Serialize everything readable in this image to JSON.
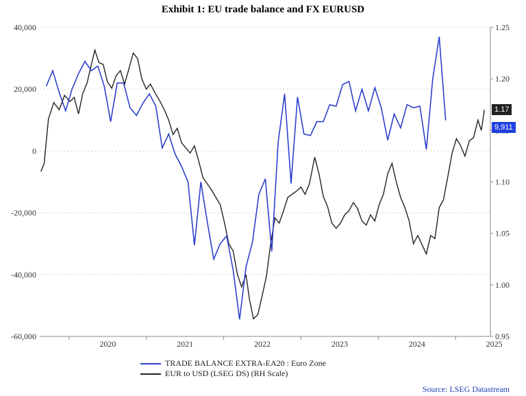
{
  "chart_data": {
    "type": "line",
    "title": "Exhibit 1: EU trade balance and FX EURUSD",
    "source": "Source: LSEG Datastream",
    "x_ticks": [
      "2020",
      "2021",
      "2022",
      "2023",
      "2024",
      "2025"
    ],
    "y_left": {
      "min": -60000,
      "max": 40000,
      "ticks": [
        "40,000",
        "20,000",
        "0",
        "-20,000",
        "-40,000",
        "-60,000"
      ]
    },
    "y_right": {
      "min": 0.95,
      "max": 1.25,
      "ticks": [
        "1.25",
        "1.20",
        "1.15",
        "1.10",
        "1.05",
        "1.00",
        "0.95"
      ]
    },
    "grid": true,
    "legend_position": "bottom",
    "series": [
      {
        "name": "TRADE BALANCE EXTRA-EA20 : Euro Zone",
        "axis": "left",
        "color": "#2b3fcc",
        "last_label": "9,911",
        "points": [
          [
            "2019-09",
            21000
          ],
          [
            "2019-10",
            26000
          ],
          [
            "2019-11",
            19000
          ],
          [
            "2019-12",
            13000
          ],
          [
            "2020-01",
            20000
          ],
          [
            "2020-02",
            25000
          ],
          [
            "2020-03",
            29000
          ],
          [
            "2020-04",
            26000
          ],
          [
            "2020-05",
            27500
          ],
          [
            "2020-06",
            21000
          ],
          [
            "2020-07",
            9500
          ],
          [
            "2020-08",
            22000
          ],
          [
            "2020-09",
            22000
          ],
          [
            "2020-10",
            14000
          ],
          [
            "2020-11",
            11500
          ],
          [
            "2020-12",
            15500
          ],
          [
            "2021-01",
            18500
          ],
          [
            "2021-02",
            14500
          ],
          [
            "2021-03",
            1000
          ],
          [
            "2021-04",
            5500
          ],
          [
            "2021-05",
            -1000
          ],
          [
            "2021-06",
            -5000
          ],
          [
            "2021-07",
            -10000
          ],
          [
            "2021-08",
            -30500
          ],
          [
            "2021-09",
            -10000
          ],
          [
            "2021-10",
            -23000
          ],
          [
            "2021-11",
            -35000
          ],
          [
            "2021-12",
            -30000
          ],
          [
            "2022-01",
            -27500
          ],
          [
            "2022-02",
            -38500
          ],
          [
            "2022-03",
            -54500
          ],
          [
            "2022-04",
            -37500
          ],
          [
            "2022-05",
            -29500
          ],
          [
            "2022-06",
            -14000
          ],
          [
            "2022-07",
            -9000
          ],
          [
            "2022-08",
            -32500
          ],
          [
            "2022-09",
            3000
          ],
          [
            "2022-10",
            18500
          ],
          [
            "2022-11",
            -10500
          ],
          [
            "2022-12",
            17500
          ],
          [
            "2023-01",
            5500
          ],
          [
            "2023-02",
            5000
          ],
          [
            "2023-03",
            9500
          ],
          [
            "2023-04",
            9500
          ],
          [
            "2023-05",
            15000
          ],
          [
            "2023-06",
            14500
          ],
          [
            "2023-07",
            21500
          ],
          [
            "2023-08",
            22500
          ],
          [
            "2023-09",
            13000
          ],
          [
            "2023-10",
            20000
          ],
          [
            "2023-11",
            13000
          ],
          [
            "2023-12",
            20500
          ],
          [
            "2024-01",
            14000
          ],
          [
            "2024-02",
            3500
          ],
          [
            "2024-03",
            12000
          ],
          [
            "2024-04",
            7500
          ],
          [
            "2024-05",
            15000
          ],
          [
            "2024-06",
            14000
          ],
          [
            "2024-07",
            14500
          ],
          [
            "2024-08",
            500
          ],
          [
            "2024-09",
            23500
          ],
          [
            "2024-10",
            37000
          ],
          [
            "2024-11",
            9911
          ]
        ]
      },
      {
        "name": "EUR to USD (LSEG DS) (RH Scale)",
        "axis": "right",
        "color": "#222222",
        "last_label": "1.17",
        "points": [
          [
            "2019-08-20",
            1.11
          ],
          [
            "2019-09-05",
            1.118
          ],
          [
            "2019-09-25",
            1.161
          ],
          [
            "2019-10-20",
            1.177
          ],
          [
            "2019-11-15",
            1.17
          ],
          [
            "2019-12-10",
            1.184
          ],
          [
            "2020-01-05",
            1.178
          ],
          [
            "2020-01-25",
            1.182
          ],
          [
            "2020-02-15",
            1.166
          ],
          [
            "2020-03-05",
            1.186
          ],
          [
            "2020-03-25",
            1.196
          ],
          [
            "2020-04-15",
            1.214
          ],
          [
            "2020-05-01",
            1.228
          ],
          [
            "2020-05-20",
            1.216
          ],
          [
            "2020-06-10",
            1.214
          ],
          [
            "2020-06-30",
            1.197
          ],
          [
            "2020-07-20",
            1.191
          ],
          [
            "2020-08-10",
            1.203
          ],
          [
            "2020-08-30",
            1.208
          ],
          [
            "2020-09-20",
            1.195
          ],
          [
            "2020-10-10",
            1.21
          ],
          [
            "2020-10-30",
            1.225
          ],
          [
            "2020-11-20",
            1.22
          ],
          [
            "2020-12-10",
            1.2
          ],
          [
            "2020-12-31",
            1.19
          ],
          [
            "2021-01-20",
            1.195
          ],
          [
            "2021-02-10",
            1.187
          ],
          [
            "2021-03-05",
            1.178
          ],
          [
            "2021-03-25",
            1.17
          ],
          [
            "2021-04-15",
            1.16
          ],
          [
            "2021-05-05",
            1.146
          ],
          [
            "2021-05-25",
            1.152
          ],
          [
            "2021-06-15",
            1.138
          ],
          [
            "2021-07-05",
            1.133
          ],
          [
            "2021-07-25",
            1.128
          ],
          [
            "2021-08-15",
            1.135
          ],
          [
            "2021-09-05",
            1.12
          ],
          [
            "2021-09-25",
            1.104
          ],
          [
            "2021-10-15",
            1.098
          ],
          [
            "2021-11-05",
            1.092
          ],
          [
            "2021-11-25",
            1.085
          ],
          [
            "2021-12-15",
            1.078
          ],
          [
            "2022-01-05",
            1.06
          ],
          [
            "2022-01-25",
            1.04
          ],
          [
            "2022-02-15",
            1.033
          ],
          [
            "2022-03-05",
            1.01
          ],
          [
            "2022-03-25",
            0.998
          ],
          [
            "2022-04-15",
            1.01
          ],
          [
            "2022-05-01",
            0.986
          ],
          [
            "2022-05-20",
            0.967
          ],
          [
            "2022-06-10",
            0.971
          ],
          [
            "2022-06-30",
            0.989
          ],
          [
            "2022-07-20",
            1.008
          ],
          [
            "2022-08-10",
            1.04
          ],
          [
            "2022-08-30",
            1.065
          ],
          [
            "2022-09-20",
            1.06
          ],
          [
            "2022-10-10",
            1.072
          ],
          [
            "2022-10-30",
            1.085
          ],
          [
            "2022-11-20",
            1.088
          ],
          [
            "2022-12-10",
            1.091
          ],
          [
            "2022-12-31",
            1.095
          ],
          [
            "2023-01-20",
            1.088
          ],
          [
            "2023-02-10",
            1.098
          ],
          [
            "2023-03-05",
            1.124
          ],
          [
            "2023-03-25",
            1.108
          ],
          [
            "2023-04-15",
            1.086
          ],
          [
            "2023-05-05",
            1.076
          ],
          [
            "2023-05-25",
            1.06
          ],
          [
            "2023-06-15",
            1.055
          ],
          [
            "2023-07-05",
            1.06
          ],
          [
            "2023-07-25",
            1.068
          ],
          [
            "2023-08-15",
            1.072
          ],
          [
            "2023-09-05",
            1.08
          ],
          [
            "2023-09-25",
            1.074
          ],
          [
            "2023-10-15",
            1.062
          ],
          [
            "2023-11-05",
            1.058
          ],
          [
            "2023-11-25",
            1.068
          ],
          [
            "2023-12-15",
            1.062
          ],
          [
            "2024-01-05",
            1.078
          ],
          [
            "2024-01-25",
            1.088
          ],
          [
            "2024-02-15",
            1.108
          ],
          [
            "2024-03-05",
            1.118
          ],
          [
            "2024-03-25",
            1.1
          ],
          [
            "2024-04-15",
            1.085
          ],
          [
            "2024-05-05",
            1.075
          ],
          [
            "2024-05-25",
            1.062
          ],
          [
            "2024-06-15",
            1.04
          ],
          [
            "2024-07-05",
            1.048
          ],
          [
            "2024-07-25",
            1.039
          ],
          [
            "2024-08-15",
            1.03
          ],
          [
            "2024-09-05",
            1.048
          ],
          [
            "2024-09-25",
            1.045
          ],
          [
            "2024-10-15",
            1.075
          ],
          [
            "2024-11-05",
            1.083
          ],
          [
            "2024-11-25",
            1.105
          ],
          [
            "2024-12-15",
            1.128
          ],
          [
            "2025-01-05",
            1.142
          ],
          [
            "2025-01-25",
            1.135
          ],
          [
            "2025-02-15",
            1.125
          ],
          [
            "2025-03-05",
            1.14
          ],
          [
            "2025-03-25",
            1.143
          ],
          [
            "2025-04-15",
            1.16
          ],
          [
            "2025-05-01",
            1.15
          ],
          [
            "2025-05-15",
            1.17
          ]
        ]
      }
    ]
  }
}
